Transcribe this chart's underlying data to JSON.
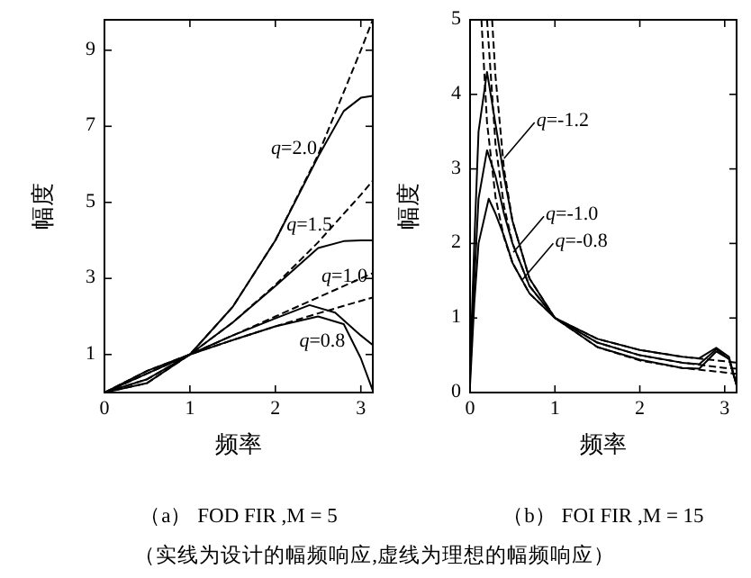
{
  "chart_data": [
    {
      "type": "line",
      "title": "（a） FOD FIR ,M = 5",
      "xlabel": "频率",
      "ylabel": "幅度",
      "xlim": [
        0,
        3.14
      ],
      "ylim": [
        0,
        9.8
      ],
      "xticks": [
        0,
        1,
        2,
        3
      ],
      "yticks": [
        1,
        3,
        5,
        7,
        9
      ],
      "series": [
        {
          "color": "#000000",
          "line_style": "dashed",
          "x": [
            0,
            0.5,
            1,
            1.5,
            2,
            2.5,
            3,
            3.14
          ],
          "values": [
            0,
            0.25,
            1,
            2.25,
            4,
            6.25,
            9,
            9.8
          ]
        },
        {
          "color": "#000000",
          "line_style": "dashed",
          "x": [
            0,
            0.5,
            1,
            1.5,
            2,
            2.5,
            3,
            3.14
          ],
          "values": [
            0,
            0.35,
            1,
            1.84,
            2.83,
            3.95,
            5.2,
            5.57
          ]
        },
        {
          "color": "#000000",
          "line_style": "dashed",
          "x": [
            0,
            0.5,
            1,
            1.5,
            2,
            2.5,
            3,
            3.14
          ],
          "values": [
            0,
            0.5,
            1,
            1.5,
            2,
            2.5,
            3,
            3.14
          ]
        },
        {
          "color": "#000000",
          "line_style": "dashed",
          "x": [
            0,
            0.5,
            1,
            1.5,
            2,
            2.5,
            3,
            3.14
          ],
          "values": [
            0,
            0.57,
            1,
            1.38,
            1.74,
            2.08,
            2.41,
            2.5
          ]
        },
        {
          "color": "#000000",
          "line_style": "solid",
          "x": [
            0,
            0.5,
            1,
            1.5,
            2,
            2.5,
            2.8,
            3,
            3.14
          ],
          "values": [
            0,
            0.25,
            1,
            2.25,
            4,
            6.2,
            7.4,
            7.75,
            7.8
          ]
        },
        {
          "color": "#000000",
          "line_style": "solid",
          "x": [
            0,
            0.5,
            1,
            1.5,
            2,
            2.5,
            2.8,
            3,
            3.14
          ],
          "values": [
            0,
            0.35,
            1,
            1.84,
            2.8,
            3.8,
            3.98,
            4.0,
            4.0
          ]
        },
        {
          "color": "#000000",
          "line_style": "solid",
          "x": [
            0,
            0.5,
            1,
            1.5,
            2,
            2.4,
            2.7,
            3,
            3.14
          ],
          "values": [
            0,
            0.5,
            1,
            1.5,
            1.95,
            2.3,
            2.1,
            1.5,
            1.25
          ]
        },
        {
          "color": "#000000",
          "line_style": "solid",
          "x": [
            0,
            0.5,
            1,
            1.5,
            2,
            2.5,
            2.8,
            3,
            3.14
          ],
          "values": [
            0,
            0.57,
            1,
            1.38,
            1.74,
            2.0,
            1.8,
            0.9,
            0.05
          ]
        }
      ],
      "annotations": [
        {
          "text": "q=2.0",
          "x": 2.55,
          "y": 6.5
        },
        {
          "text": "q=1.5",
          "x": 2.73,
          "y": 4.5
        },
        {
          "text": "q=1.0",
          "x": 3.14,
          "y": 3.14
        },
        {
          "text": "q=0.8",
          "x": 2.88,
          "y": 1.44
        },
        "（实线为设计的幅频响应,虚线为理想的幅频响应）"
      ]
    },
    {
      "type": "line",
      "title": "（b） FOI FIR ,M = 15",
      "xlabel": "频率",
      "ylabel": "幅度",
      "xlim": [
        0,
        3.14
      ],
      "ylim": [
        0,
        5
      ],
      "xticks": [
        0,
        1,
        2,
        3
      ],
      "yticks": [
        0,
        1,
        2,
        3,
        4,
        5
      ],
      "series": [
        {
          "color": "#000000",
          "line_style": "dashed",
          "x": [
            0.26,
            0.3,
            0.4,
            0.5,
            0.7,
            1,
            1.5,
            2,
            2.5,
            3,
            3.14
          ],
          "values": [
            5,
            4.24,
            3.0,
            2.3,
            1.53,
            1,
            0.61,
            0.43,
            0.33,
            0.27,
            0.25
          ]
        },
        {
          "color": "#000000",
          "line_style": "dashed",
          "x": [
            0.2,
            0.3,
            0.4,
            0.5,
            0.7,
            1,
            1.5,
            2,
            2.5,
            3,
            3.14
          ],
          "values": [
            5,
            3.33,
            2.5,
            2.0,
            1.43,
            1,
            0.67,
            0.5,
            0.4,
            0.33,
            0.32
          ]
        },
        {
          "color": "#000000",
          "line_style": "dashed",
          "x": [
            0.134,
            0.2,
            0.3,
            0.4,
            0.5,
            0.7,
            1,
            1.5,
            2,
            2.5,
            3,
            3.14
          ],
          "values": [
            5,
            3.62,
            2.62,
            2.08,
            1.74,
            1.33,
            1,
            0.72,
            0.57,
            0.48,
            0.42,
            0.4
          ]
        },
        {
          "color": "#000000",
          "line_style": "solid",
          "x": [
            0,
            0.05,
            0.1,
            0.2,
            0.3,
            0.4,
            0.5,
            0.7,
            1,
            1.5,
            2,
            2.5,
            2.7,
            2.9,
            3.05,
            3.14
          ],
          "values": [
            0.3,
            2.0,
            3.5,
            4.3,
            3.6,
            2.9,
            2.3,
            1.53,
            1.0,
            0.61,
            0.44,
            0.33,
            0.32,
            0.55,
            0.45,
            0.1
          ]
        },
        {
          "color": "#000000",
          "line_style": "solid",
          "x": [
            0,
            0.05,
            0.1,
            0.2,
            0.3,
            0.4,
            0.5,
            0.7,
            1,
            1.5,
            2,
            2.5,
            2.7,
            2.9,
            3.05,
            3.14
          ],
          "values": [
            0.2,
            1.5,
            2.6,
            3.25,
            2.9,
            2.4,
            2.0,
            1.43,
            1.0,
            0.67,
            0.5,
            0.4,
            0.38,
            0.58,
            0.45,
            0.1
          ]
        },
        {
          "color": "#000000",
          "line_style": "solid",
          "x": [
            0,
            0.05,
            0.1,
            0.22,
            0.3,
            0.4,
            0.5,
            0.7,
            1,
            1.5,
            2,
            2.5,
            2.7,
            2.9,
            3.05,
            3.14
          ],
          "values": [
            0.1,
            1.2,
            2.0,
            2.6,
            2.4,
            2.1,
            1.74,
            1.33,
            1.0,
            0.72,
            0.57,
            0.48,
            0.46,
            0.6,
            0.48,
            0.1
          ]
        }
      ],
      "annotations": [
        {
          "text": "q=-1.2",
          "x": 0.4,
          "y": 3.14
        },
        {
          "text": "q=-1.0",
          "x": 0.51,
          "y": 1.88
        },
        {
          "text": "q=-0.8",
          "x": 0.62,
          "y": 1.52
        }
      ]
    }
  ]
}
